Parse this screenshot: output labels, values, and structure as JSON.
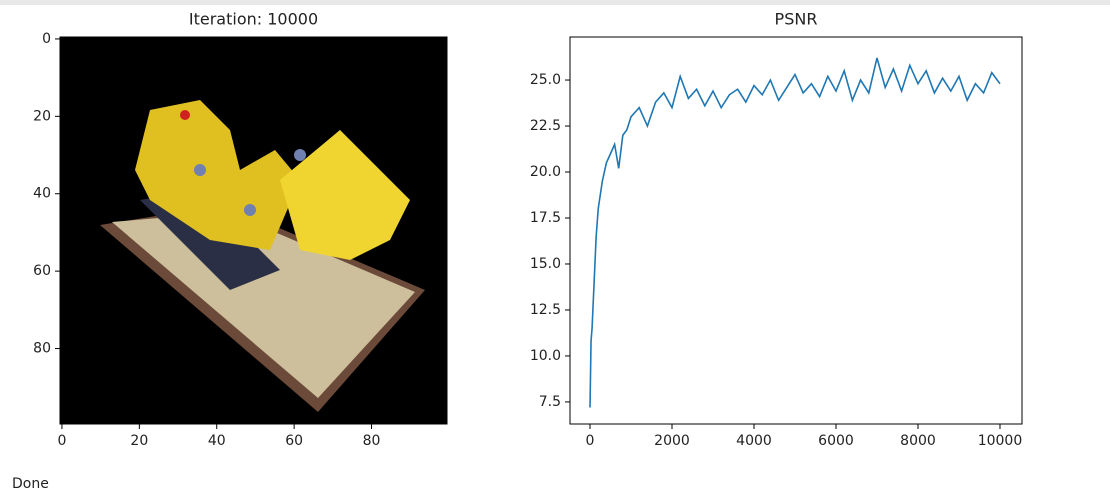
{
  "chart_data": [
    {
      "type": "image",
      "title": "Iteration: 10000",
      "xlim": [
        -0.5,
        99.5
      ],
      "ylim": [
        99.5,
        -0.5
      ],
      "xticks": [
        0,
        20,
        40,
        60,
        80
      ],
      "yticks": [
        0,
        20,
        40,
        60,
        80
      ]
    },
    {
      "type": "line",
      "title": "PSNR",
      "color": "#1f77b4",
      "x": [
        0,
        25,
        50,
        100,
        150,
        200,
        300,
        400,
        500,
        600,
        700,
        800,
        900,
        1000,
        1200,
        1400,
        1600,
        1800,
        2000,
        2200,
        2400,
        2600,
        2800,
        3000,
        3200,
        3400,
        3600,
        3800,
        4000,
        4200,
        4400,
        4600,
        4800,
        5000,
        5200,
        5400,
        5600,
        5800,
        6000,
        6200,
        6400,
        6600,
        6800,
        7000,
        7200,
        7400,
        7600,
        7800,
        8000,
        8200,
        8400,
        8600,
        8800,
        9000,
        9200,
        9400,
        9600,
        9800,
        10000
      ],
      "values": [
        7.2,
        10.8,
        11.5,
        14,
        16.5,
        18,
        19.5,
        20.5,
        21,
        21.5,
        20.2,
        22,
        22.3,
        23,
        23.5,
        22.5,
        23.8,
        24.3,
        23.5,
        25.2,
        24,
        24.5,
        23.6,
        24.4,
        23.5,
        24.2,
        24.5,
        23.8,
        24.7,
        24.2,
        25,
        23.9,
        24.6,
        25.3,
        24.3,
        24.8,
        24.1,
        25.2,
        24.4,
        25.5,
        23.9,
        25,
        24.3,
        26.2,
        24.6,
        25.6,
        24.4,
        25.8,
        24.8,
        25.5,
        24.3,
        25.1,
        24.4,
        25.2,
        23.9,
        24.8,
        24.3,
        25.4,
        24.8
      ],
      "xlim": [
        -488,
        10537
      ],
      "ylim": [
        6.3,
        27.34
      ],
      "xticks": [
        0,
        2000,
        4000,
        6000,
        8000,
        10000
      ],
      "yticks": [
        7.5,
        {
          "value": 10,
          "label": "10.0"
        },
        12.5,
        {
          "value": 15,
          "label": "15.0"
        },
        17.5,
        {
          "value": 20,
          "label": "20.0"
        },
        22.5,
        {
          "value": 25,
          "label": "25.0"
        }
      ]
    }
  ],
  "output_text": "Done"
}
